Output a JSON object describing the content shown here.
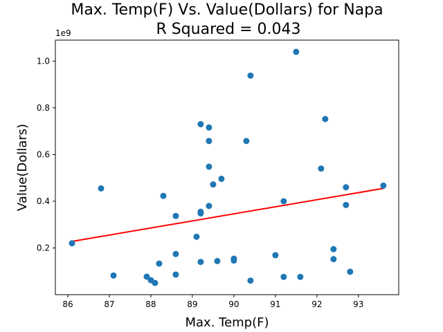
{
  "chart_data": {
    "type": "scatter",
    "title": "Max. Temp(F) Vs. Value(Dollars) for Napa",
    "subtitle": "R Squared =  0.043",
    "xlabel": "Max. Temp(F)",
    "ylabel": "Value(Dollars)",
    "y_offset_label": "1e9",
    "xlim": [
      85.7,
      93.97
    ],
    "ylim": [
      0.0,
      1.09
    ],
    "x_ticks": [
      86,
      87,
      88,
      89,
      90,
      91,
      92,
      93
    ],
    "x_tick_labels": [
      "86",
      "87",
      "88",
      "89",
      "90",
      "91",
      "92",
      "93"
    ],
    "y_ticks": [
      0.2,
      0.4,
      0.6,
      0.8,
      1.0
    ],
    "y_tick_labels": [
      "0.2",
      "0.4",
      "0.6",
      "0.8",
      "1.0"
    ],
    "grid": false,
    "colors": {
      "points": "#1f77b4",
      "regression": "#ff0000"
    },
    "series": [
      {
        "x": [
          86.1,
          86.8,
          87.1,
          87.9,
          88.0,
          88.1,
          88.2,
          88.3,
          88.6,
          88.6,
          88.6,
          89.1,
          89.2,
          89.2,
          89.2,
          89.2,
          89.4,
          89.4,
          89.4,
          89.4,
          89.5,
          89.6,
          89.7,
          90.0,
          90.0,
          90.3,
          90.4,
          90.4,
          91.0,
          91.2,
          91.2,
          91.5,
          91.6,
          92.1,
          92.2,
          92.4,
          92.4,
          92.7,
          92.7,
          92.8,
          93.6
        ],
        "values": [
          0.22,
          0.455,
          0.082,
          0.077,
          0.062,
          0.05,
          0.133,
          0.423,
          0.086,
          0.174,
          0.337,
          0.248,
          0.14,
          0.348,
          0.355,
          0.73,
          0.38,
          0.548,
          0.658,
          0.716,
          0.472,
          0.144,
          0.496,
          0.146,
          0.154,
          0.658,
          0.06,
          0.938,
          0.169,
          0.076,
          0.4,
          1.04,
          0.076,
          0.54,
          0.752,
          0.152,
          0.195,
          0.46,
          0.384,
          0.098,
          0.467
        ]
      }
    ],
    "regression_line": {
      "x": [
        86.1,
        93.6
      ],
      "y": [
        0.228,
        0.455
      ]
    }
  }
}
